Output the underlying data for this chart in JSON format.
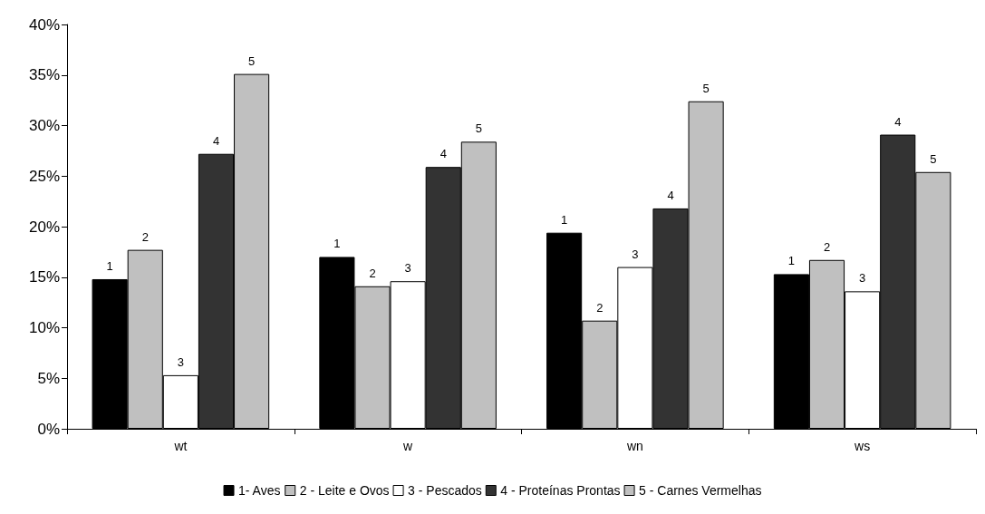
{
  "chart_data": {
    "type": "bar",
    "categories": [
      "wt",
      "w",
      "wn",
      "ws"
    ],
    "series": [
      {
        "name": "1- Aves",
        "color": "#000000",
        "values": [
          14.8,
          17.0,
          19.4,
          15.3
        ]
      },
      {
        "name": "2 - Leite e Ovos",
        "color": "#c0c0c0",
        "values": [
          17.7,
          14.1,
          10.7,
          16.7
        ]
      },
      {
        "name": "3 - Pescados",
        "color": "#ffffff",
        "values": [
          5.3,
          14.6,
          16.0,
          13.6
        ]
      },
      {
        "name": "4 - Proteínas Prontas",
        "color": "#333333",
        "values": [
          27.2,
          25.9,
          21.8,
          29.1
        ]
      },
      {
        "name": "5 - Carnes Vermelhas",
        "color": "#c0c0c0",
        "values": [
          35.1,
          28.4,
          32.4,
          25.4
        ]
      }
    ],
    "annotations": [
      "1",
      "2",
      "3",
      "4",
      "5",
      "1",
      "2",
      "3",
      "4",
      "5",
      "1",
      "2",
      "3",
      "4",
      "5",
      "1",
      "2",
      "3",
      "4",
      "5"
    ],
    "ylim": [
      0,
      40
    ],
    "yticks": [
      {
        "value": 0,
        "label": "0%"
      },
      {
        "value": 5,
        "label": "5%"
      },
      {
        "value": 10,
        "label": "10%"
      },
      {
        "value": 15,
        "label": "15%"
      },
      {
        "value": 20,
        "label": "20%"
      },
      {
        "value": 25,
        "label": "25%"
      },
      {
        "value": 30,
        "label": "30%"
      },
      {
        "value": 35,
        "label": "35%"
      },
      {
        "value": 40,
        "label": "40%"
      }
    ],
    "grid": false,
    "legend": "bottom"
  }
}
